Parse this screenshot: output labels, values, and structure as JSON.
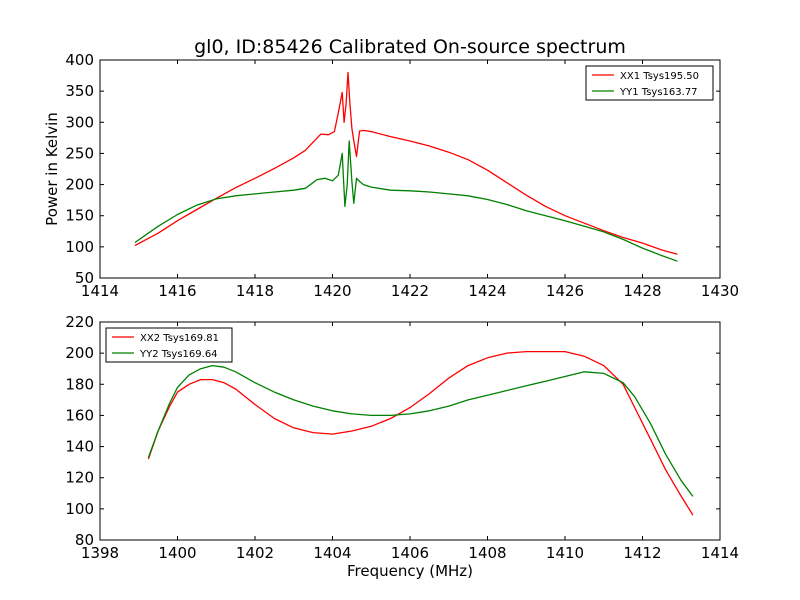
{
  "title": "gl0, ID:85426 Calibrated On-source spectrum",
  "colors": {
    "xx": "#ff0000",
    "yy": "#008000",
    "axes": "#000000",
    "background": "#ffffff"
  },
  "chart_data": [
    {
      "type": "line",
      "title": "gl0, ID:85426 Calibrated On-source spectrum",
      "xlabel": "",
      "ylabel": "Power in Kelvin",
      "xlim": [
        1414,
        1430
      ],
      "ylim": [
        50,
        400
      ],
      "xticks": [
        1414,
        1416,
        1418,
        1420,
        1422,
        1424,
        1426,
        1428,
        1430
      ],
      "yticks": [
        50,
        100,
        150,
        200,
        250,
        300,
        350,
        400
      ],
      "grid": false,
      "legend": "top-right",
      "series": [
        {
          "name": "XX1 Tsys195.50",
          "color": "#ff0000",
          "x": [
            1414.9,
            1415.5,
            1416.0,
            1416.5,
            1417.0,
            1417.5,
            1418.0,
            1418.5,
            1419.0,
            1419.3,
            1419.5,
            1419.7,
            1419.9,
            1420.05,
            1420.15,
            1420.25,
            1420.3,
            1420.35,
            1420.4,
            1420.45,
            1420.5,
            1420.55,
            1420.62,
            1420.7,
            1420.8,
            1421.0,
            1421.5,
            1422.0,
            1422.5,
            1423.0,
            1423.5,
            1424.0,
            1424.5,
            1425.0,
            1425.5,
            1426.0,
            1426.5,
            1427.0,
            1427.5,
            1428.0,
            1428.5,
            1428.9
          ],
          "y": [
            102,
            122,
            142,
            160,
            178,
            195,
            210,
            226,
            243,
            255,
            268,
            281,
            280,
            285,
            315,
            348,
            300,
            330,
            380,
            330,
            290,
            270,
            245,
            286,
            287,
            285,
            277,
            270,
            262,
            252,
            240,
            223,
            203,
            183,
            165,
            150,
            138,
            126,
            115,
            106,
            95,
            88
          ]
        },
        {
          "name": "YY1 Tsys163.77",
          "color": "#008000",
          "x": [
            1414.9,
            1415.5,
            1416.0,
            1416.5,
            1417.0,
            1417.5,
            1418.0,
            1418.5,
            1419.0,
            1419.3,
            1419.6,
            1419.8,
            1420.0,
            1420.15,
            1420.25,
            1420.32,
            1420.38,
            1420.43,
            1420.5,
            1420.55,
            1420.62,
            1420.7,
            1420.8,
            1421.0,
            1421.5,
            1422.0,
            1422.5,
            1423.0,
            1423.5,
            1424.0,
            1424.5,
            1425.0,
            1425.5,
            1426.0,
            1426.5,
            1427.0,
            1427.5,
            1428.0,
            1428.5,
            1428.9
          ],
          "y": [
            107,
            133,
            152,
            167,
            177,
            182,
            185,
            188,
            191,
            194,
            208,
            210,
            206,
            215,
            250,
            165,
            200,
            270,
            205,
            170,
            210,
            205,
            200,
            196,
            191,
            190,
            188,
            185,
            182,
            176,
            168,
            158,
            150,
            142,
            133,
            124,
            112,
            98,
            86,
            77
          ]
        }
      ]
    },
    {
      "type": "line",
      "title": "",
      "xlabel": "Frequency (MHz)",
      "ylabel": "",
      "xlim": [
        1398,
        1414
      ],
      "ylim": [
        80,
        220
      ],
      "xticks": [
        1398,
        1400,
        1402,
        1404,
        1406,
        1408,
        1410,
        1412,
        1414
      ],
      "yticks": [
        80,
        100,
        120,
        140,
        160,
        180,
        200,
        220
      ],
      "grid": false,
      "legend": "top-left",
      "series": [
        {
          "name": "XX2 Tsys169.81",
          "color": "#ff0000",
          "x": [
            1399.25,
            1399.5,
            1399.8,
            1400.0,
            1400.3,
            1400.6,
            1400.9,
            1401.2,
            1401.5,
            1402.0,
            1402.5,
            1403.0,
            1403.5,
            1404.0,
            1404.5,
            1405.0,
            1405.5,
            1406.0,
            1406.5,
            1407.0,
            1407.5,
            1408.0,
            1408.5,
            1409.0,
            1409.5,
            1410.0,
            1410.5,
            1411.0,
            1411.5,
            1411.8,
            1412.2,
            1412.6,
            1413.0,
            1413.3
          ],
          "y": [
            132,
            150,
            166,
            175,
            180,
            183,
            183,
            181,
            177,
            167,
            158,
            152,
            149,
            148,
            150,
            153,
            158,
            165,
            174,
            184,
            192,
            197,
            200,
            201,
            201,
            201,
            198,
            192,
            180,
            165,
            145,
            125,
            108,
            96
          ]
        },
        {
          "name": "YY2 Tsys169.64",
          "color": "#008000",
          "x": [
            1399.25,
            1399.5,
            1399.8,
            1400.0,
            1400.3,
            1400.6,
            1400.9,
            1401.2,
            1401.5,
            1402.0,
            1402.5,
            1403.0,
            1403.5,
            1404.0,
            1404.5,
            1405.0,
            1405.5,
            1406.0,
            1406.5,
            1407.0,
            1407.5,
            1408.0,
            1408.5,
            1409.0,
            1409.5,
            1410.0,
            1410.5,
            1411.0,
            1411.5,
            1411.8,
            1412.2,
            1412.6,
            1413.0,
            1413.3
          ],
          "y": [
            133,
            150,
            168,
            178,
            186,
            190,
            192,
            191,
            188,
            181,
            175,
            170,
            166,
            163,
            161,
            160,
            160,
            161,
            163,
            166,
            170,
            173,
            176,
            179,
            182,
            185,
            188,
            187,
            181,
            172,
            155,
            135,
            118,
            108
          ]
        }
      ]
    }
  ]
}
